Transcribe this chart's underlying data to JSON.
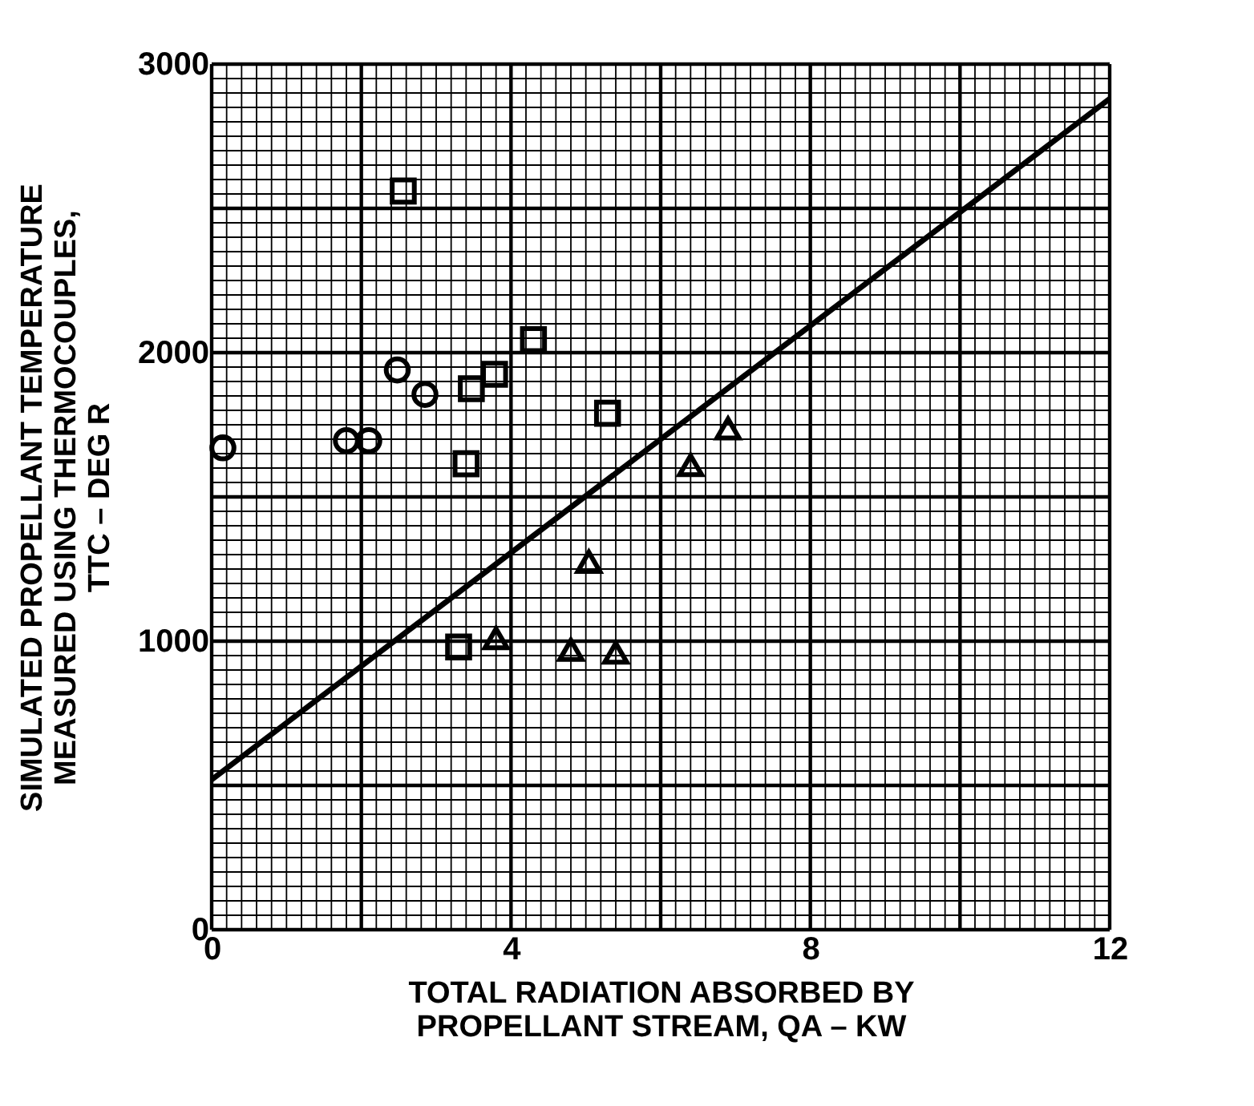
{
  "chart_data": {
    "type": "scatter",
    "xlabel": "TOTAL RADIATION ABSORBED BY\nPROPELLANT STREAM, QA – KW",
    "ylabel": "SIMULATED PROPELLANT TEMPERATURE\nMEASURED USING THERMOCOUPLES,\nTTC – DEG R",
    "xlim": [
      0,
      12
    ],
    "ylim": [
      0,
      3000
    ],
    "xticks": [
      0,
      4,
      8,
      12
    ],
    "yticks": [
      0,
      1000,
      2000,
      3000
    ],
    "grid": true,
    "series": [
      {
        "marker": "circle",
        "color": "#000000",
        "x": [
          0.15,
          1.8,
          2.1,
          2.48,
          2.85
        ],
        "values": [
          1670,
          1695,
          1695,
          1940,
          1855
        ]
      },
      {
        "marker": "square",
        "color": "#000000",
        "x": [
          2.56,
          4.3,
          3.47,
          3.78,
          5.29,
          3.4,
          3.3
        ],
        "values": [
          2560,
          2045,
          1875,
          1925,
          1790,
          1615,
          980
        ]
      },
      {
        "marker": "triangle",
        "color": "#000000",
        "x": [
          6.9,
          6.4,
          5.04,
          3.8,
          4.8,
          5.4
        ],
        "values": [
          1737,
          1610,
          1275,
          1010,
          970,
          960
        ]
      },
      {
        "type": "line",
        "color": "#000000",
        "x": [
          0,
          12
        ],
        "values": [
          520,
          2880
        ]
      }
    ]
  }
}
